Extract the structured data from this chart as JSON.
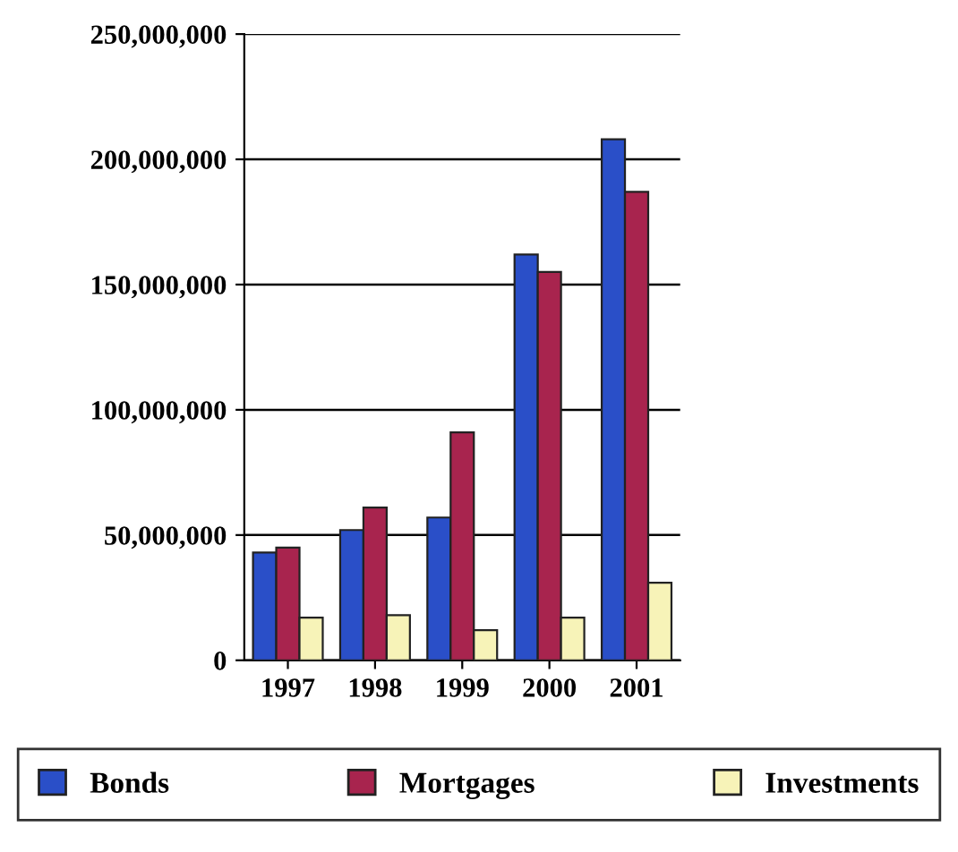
{
  "chart_data": {
    "type": "bar",
    "categories": [
      "1997",
      "1998",
      "1999",
      "2000",
      "2001"
    ],
    "series": [
      {
        "name": "Bonds",
        "color": "#2a4fc8",
        "values": [
          43000000,
          52000000,
          57000000,
          162000000,
          208000000
        ]
      },
      {
        "name": "Mortgages",
        "color": "#a8244e",
        "values": [
          45000000,
          61000000,
          91000000,
          155000000,
          187000000
        ]
      },
      {
        "name": "Investments",
        "color": "#f7f3b8",
        "values": [
          17000000,
          18000000,
          12000000,
          17000000,
          31000000
        ]
      }
    ],
    "ylim": [
      0,
      250000000
    ],
    "yticks": [
      {
        "value": 0,
        "label": "0"
      },
      {
        "value": 50000000,
        "label": "50,000,000"
      },
      {
        "value": 100000000,
        "label": "100,000,000"
      },
      {
        "value": 150000000,
        "label": "150,000,000"
      },
      {
        "value": 200000000,
        "label": "200,000,000"
      },
      {
        "value": 250000000,
        "label": "250,000,000"
      }
    ],
    "grid": "y",
    "legend": "bottom"
  }
}
